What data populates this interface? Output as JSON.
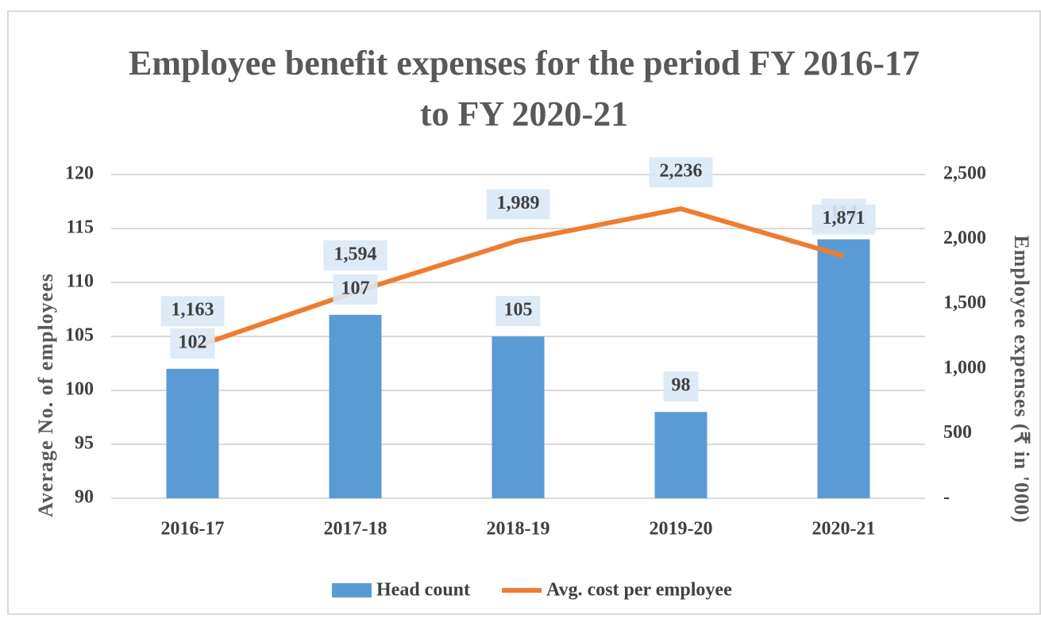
{
  "chart_data": {
    "type": "bar-line",
    "title": "Employee benefit expenses for the period FY 2016-17 to FY 2020-21",
    "y_label": "Average No. of employees",
    "y2_label": "Employee expenses (₹ in '000)",
    "categories": [
      "2016-17",
      "2017-18",
      "2018-19",
      "2019-20",
      "2020-21"
    ],
    "series": [
      {
        "name": "Head count",
        "type": "bar",
        "color": "#5b9bd5",
        "values": [
          102,
          107,
          105,
          98,
          114
        ]
      },
      {
        "name": "Avg. cost per employee",
        "type": "line",
        "axis": "y2",
        "color": "#ed7d31",
        "values": [
          1163,
          1594,
          1989,
          2236,
          1871
        ],
        "value_labels": [
          "1,163",
          "1,594",
          "1,989",
          "2,236",
          "1,871"
        ]
      }
    ],
    "ylim": [
      90,
      120
    ],
    "yticks": [
      90,
      95,
      100,
      105,
      110,
      115,
      120
    ],
    "y2lim": [
      0,
      2500
    ],
    "y2ticks": [
      {
        "value": 0,
        "label": "-"
      },
      500,
      {
        "value": 1000,
        "label": "1,000"
      },
      {
        "value": 1500,
        "label": "1,500"
      },
      {
        "value": 2000,
        "label": "2,000"
      },
      {
        "value": 2500,
        "label": "2,500"
      }
    ],
    "grid": true,
    "legend": "bottom"
  }
}
